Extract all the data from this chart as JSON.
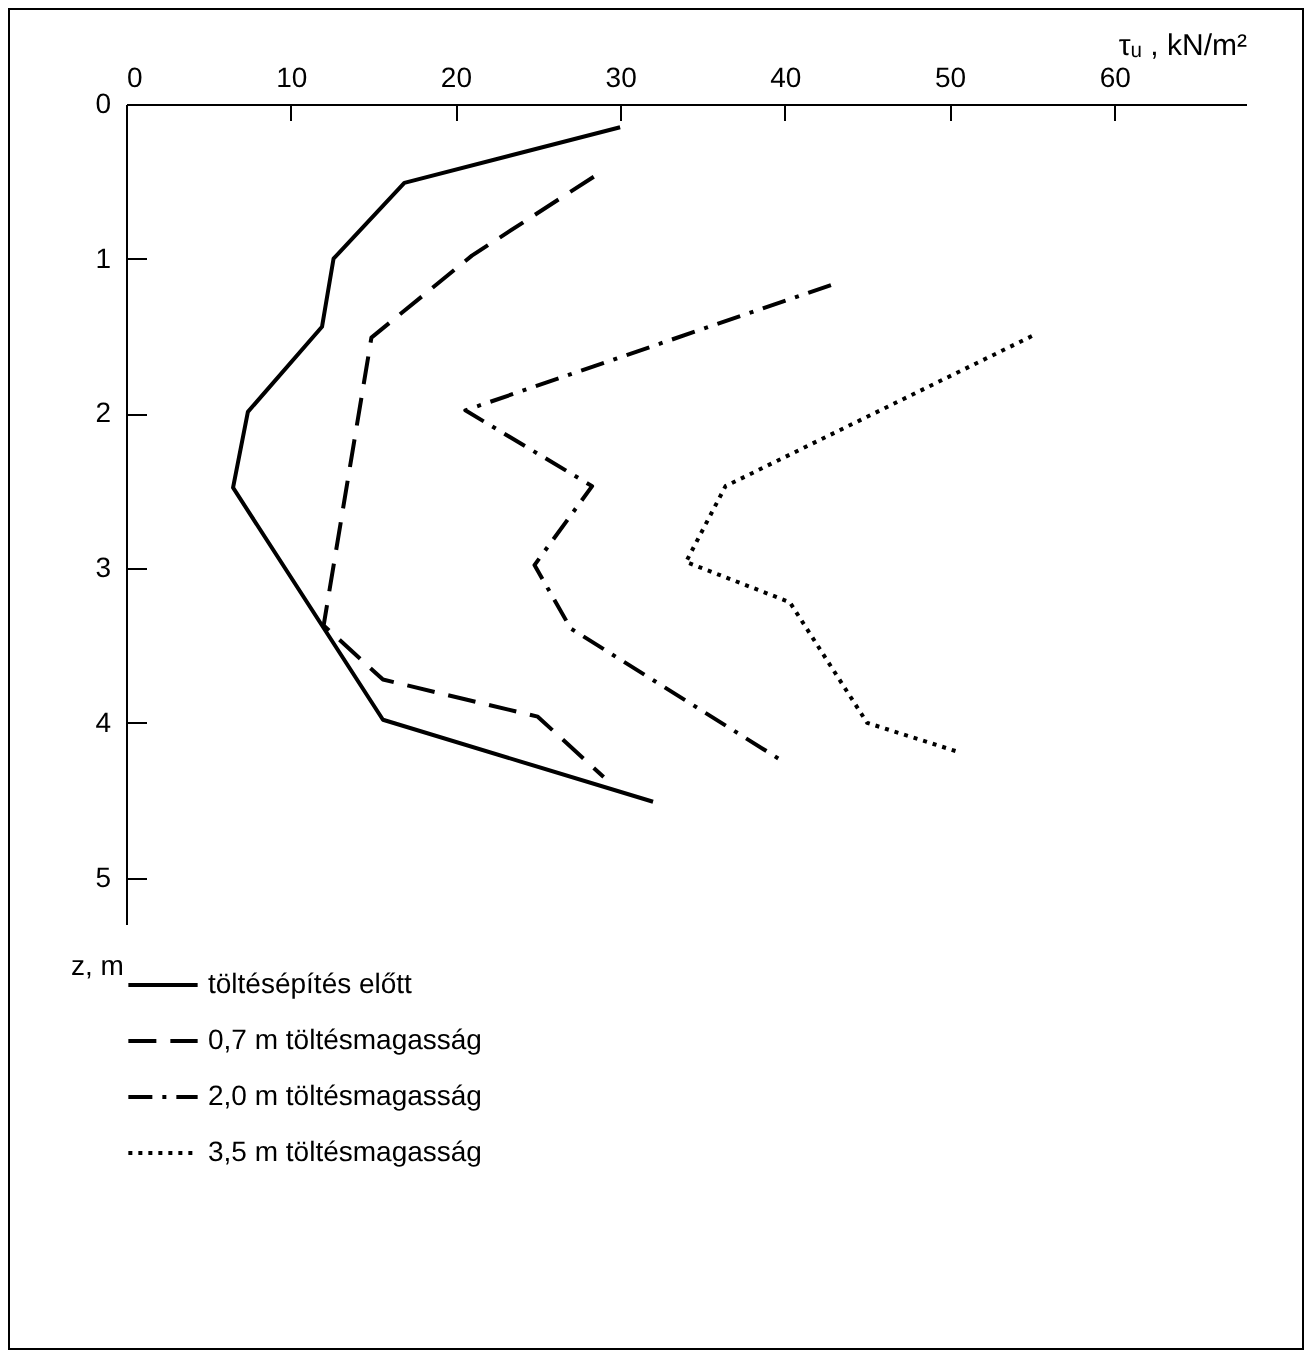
{
  "chart_data": {
    "type": "line",
    "xlabel": "τᵤ , kN/m²",
    "ylabel": "z, m",
    "xlim": [
      0,
      68
    ],
    "xticks": [
      0,
      10,
      20,
      30,
      40,
      50,
      60
    ],
    "ylim": [
      5.3,
      0
    ],
    "yticks": [
      0,
      1,
      2,
      3,
      4,
      5
    ],
    "grid": false,
    "legend": "bottom",
    "marker": "none",
    "series": [
      {
        "name": "töltésépítés előtt",
        "color": "#000000",
        "line_style": "solid",
        "x": [
          30,
          16.9,
          12.6,
          11.9,
          7.4,
          6.5,
          15.6,
          32.0
        ],
        "values": [
          0.15,
          0.51,
          1.0,
          1.44,
          1.99,
          2.48,
          3.98,
          4.51
        ]
      },
      {
        "name": "0,7 m töltésmagasság",
        "color": "#000000",
        "line_style": "dashed",
        "x": [
          28.4,
          21.0,
          14.9,
          12.0,
          15.6,
          25.0,
          29.0
        ],
        "values": [
          0.47,
          0.98,
          1.51,
          3.37,
          3.72,
          3.96,
          4.35
        ]
      },
      {
        "name": "2,0 m töltésmagasság",
        "color": "#000000",
        "line_style": "dashdot",
        "x": [
          42.8,
          20.6,
          28.3,
          24.8,
          27.0,
          39.6
        ],
        "values": [
          1.17,
          1.98,
          2.47,
          2.98,
          3.39,
          4.23
        ]
      },
      {
        "name": "3,5 m töltésmagasság",
        "color": "#000000",
        "line_style": "dotted",
        "x": [
          55.0,
          36.4,
          34.0,
          40.3,
          45.0,
          50.6
        ],
        "values": [
          1.5,
          2.47,
          2.96,
          3.22,
          4.0,
          4.19
        ]
      }
    ]
  }
}
